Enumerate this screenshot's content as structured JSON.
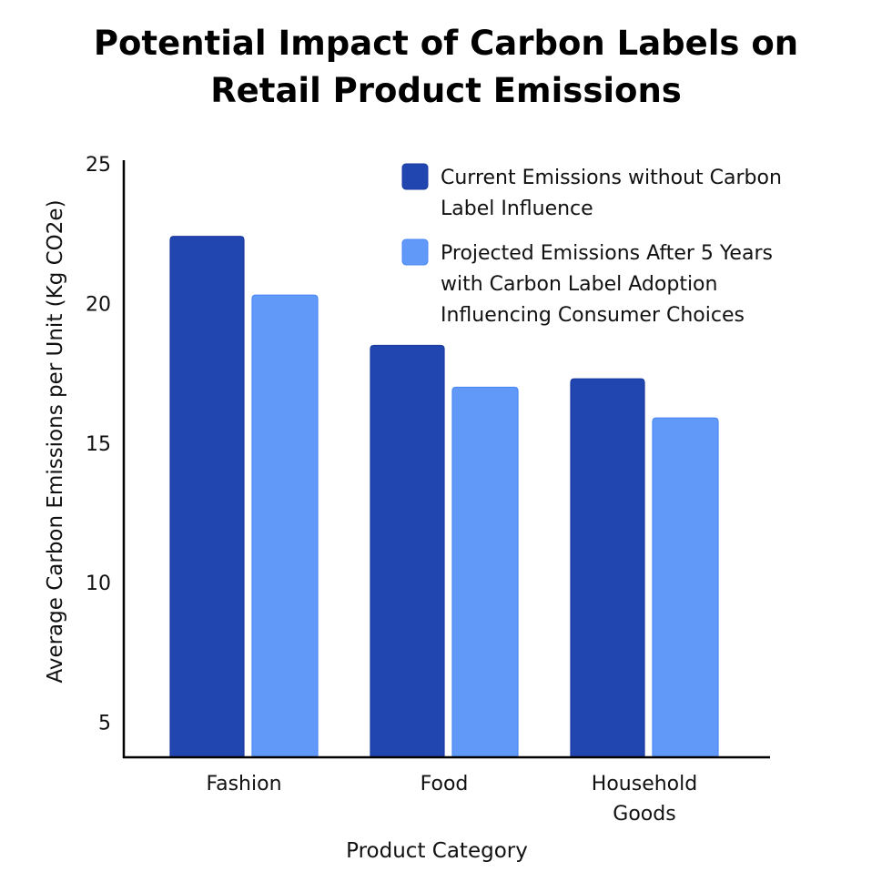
{
  "chart_data": {
    "type": "bar",
    "title": "Potential Impact of Carbon Labels on Retail Product Emissions",
    "title_lines": [
      "Potential Impact of Carbon Labels on",
      "Retail Product Emissions"
    ],
    "xlabel": "Product Category",
    "ylabel": "Average Carbon Emissions per Unit (Kg CO2e)",
    "categories": [
      "Fashion",
      "Food",
      "Household Goods"
    ],
    "category_lines": [
      [
        "Fashion"
      ],
      [
        "Food"
      ],
      [
        "Household",
        "Goods"
      ]
    ],
    "ylim": [
      3.75,
      25
    ],
    "yticks": [
      5,
      10,
      15,
      20,
      25
    ],
    "grid": false,
    "legend_position": "top-right",
    "series": [
      {
        "name": "Current Emissions without Carbon Label Influence",
        "name_lines": [
          "Current Emissions without Carbon",
          "Label Influence"
        ],
        "color": "#2146b0",
        "values": [
          22.4,
          18.5,
          17.3
        ]
      },
      {
        "name": "Projected Emissions After 5 Years with Carbon Label Adoption Influencing Consumer Choices",
        "name_lines": [
          "Projected Emissions After 5 Years",
          "with Carbon Label Adoption",
          "Influencing Consumer Choices"
        ],
        "color": "#6199f8",
        "values": [
          20.3,
          17.0,
          15.9
        ]
      }
    ]
  }
}
